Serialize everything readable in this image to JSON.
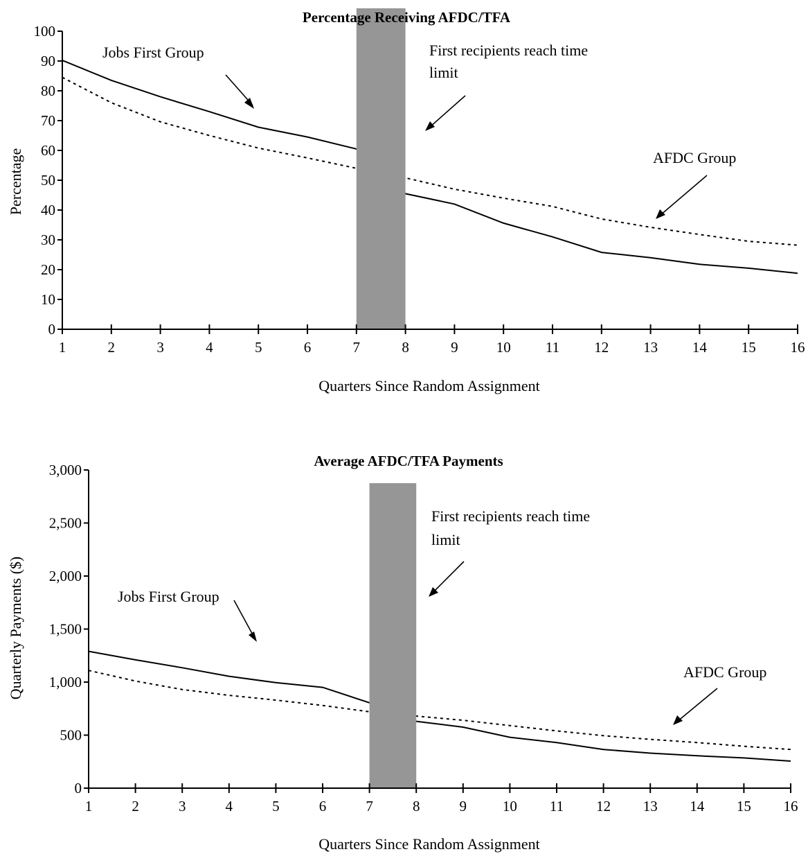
{
  "chart_data": [
    {
      "type": "line",
      "title": "Percentage Receiving AFDC/TFA",
      "xlabel": "Quarters Since Random Assignment",
      "ylabel": "Percentage",
      "x": [
        1,
        2,
        3,
        4,
        5,
        6,
        7,
        8,
        9,
        10,
        11,
        12,
        13,
        14,
        15,
        16
      ],
      "xlim": [
        1,
        16
      ],
      "ylim": [
        0,
        100
      ],
      "yticks": [
        0,
        10,
        20,
        30,
        40,
        50,
        60,
        70,
        80,
        90,
        100
      ],
      "ytick_labels": [
        "0",
        "10",
        "20",
        "30",
        "40",
        "50",
        "60",
        "70",
        "80",
        "90",
        "100"
      ],
      "series": [
        {
          "name": "Jobs First Group",
          "style": "solid",
          "values": [
            90.2,
            83.5,
            78.0,
            73.0,
            67.8,
            64.5,
            60.5,
            45.5,
            42.0,
            35.6,
            31.0,
            25.8,
            24.0,
            21.8,
            20.5,
            18.8
          ]
        },
        {
          "name": "AFDC Group",
          "style": "dashed",
          "values": [
            84.5,
            76.0,
            69.6,
            65.0,
            60.8,
            57.5,
            54.0,
            50.8,
            47.0,
            44.0,
            41.2,
            37.0,
            34.2,
            31.8,
            29.5,
            28.2
          ]
        }
      ],
      "shaded_band": {
        "from": 7,
        "to": 8,
        "color": "#969696"
      },
      "annotations": {
        "jobs_first": "Jobs First Group",
        "time_limit_line1": "First recipients reach time",
        "time_limit_line2": "limit",
        "afdc": "AFDC Group"
      },
      "grid": false,
      "legend": "none"
    },
    {
      "type": "line",
      "title": "Average AFDC/TFA Payments",
      "xlabel": "Quarters Since Random Assignment",
      "ylabel": "Quarterly Payments ($)",
      "x": [
        1,
        2,
        3,
        4,
        5,
        6,
        7,
        8,
        9,
        10,
        11,
        12,
        13,
        14,
        15,
        16
      ],
      "xlim": [
        1,
        16
      ],
      "ylim": [
        0,
        3000
      ],
      "yticks": [
        0,
        500,
        1000,
        1500,
        2000,
        2500,
        3000
      ],
      "ytick_labels": [
        "0",
        "500",
        "1,000",
        "1,500",
        "2,000",
        "2,500",
        "3,000"
      ],
      "series": [
        {
          "name": "Jobs First Group",
          "style": "solid",
          "values": [
            1290,
            1210,
            1135,
            1055,
            995,
            950,
            805,
            630,
            575,
            480,
            430,
            365,
            330,
            305,
            285,
            255
          ]
        },
        {
          "name": "AFDC Group",
          "style": "dashed",
          "values": [
            1110,
            1010,
            930,
            875,
            830,
            780,
            720,
            680,
            640,
            590,
            540,
            495,
            460,
            430,
            395,
            365
          ]
        }
      ],
      "shaded_band": {
        "from": 7,
        "to": 8,
        "color": "#969696"
      },
      "annotations": {
        "jobs_first": "Jobs First Group",
        "time_limit_line1": "First recipients reach time",
        "time_limit_line2": "limit",
        "afdc": "AFDC Group"
      },
      "grid": false,
      "legend": "none"
    }
  ]
}
